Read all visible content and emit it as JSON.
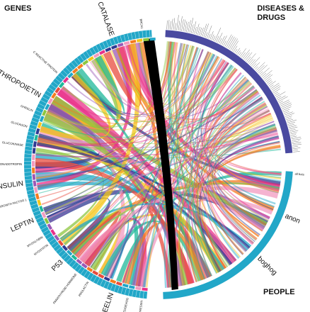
{
  "titles": {
    "genes": "GENES",
    "diseases_line1": "DISEASES &",
    "diseases_line2": "DRUGS",
    "people": "PEOPLE"
  },
  "gene_labels": [
    {
      "text": "CATALASE",
      "big": true
    },
    {
      "text": "BRCA1",
      "big": false
    },
    {
      "text": "C REACTIVE PROTEIN",
      "big": false
    },
    {
      "text": "ERYTHROPOIETIN",
      "big": true
    },
    {
      "text": "GHRELIN",
      "big": false
    },
    {
      "text": "GLUCAGON",
      "big": false
    },
    {
      "text": "GLUCOKINASE",
      "big": false
    },
    {
      "text": "HUMAN CHORIONIC GONADOTROPIN",
      "big": false
    },
    {
      "text": "INSULIN",
      "big": true
    },
    {
      "text": "INSULIN-LIKE GROWTH FACTOR 1",
      "big": false
    },
    {
      "text": "LEPTIN",
      "big": true
    },
    {
      "text": "MYOGLOBIN",
      "big": false
    },
    {
      "text": "MYOSTATIN",
      "big": false
    },
    {
      "text": "P53",
      "big": true
    },
    {
      "text": "PARATHYROID HORMONE",
      "big": false
    },
    {
      "text": "PROLACTIN",
      "big": false
    },
    {
      "text": "REELIN",
      "big": true
    },
    {
      "text": "SONIC HEDGEHOG",
      "big": false
    },
    {
      "text": "VASOPRESSIN",
      "big": false
    }
  ],
  "people_labels": [
    {
      "text": "all bots",
      "big": false
    },
    {
      "text": "anon",
      "big": true
    },
    {
      "text": "boghog",
      "big": true
    }
  ],
  "colors": {
    "ring_genes": "#22a7c8",
    "ring_people": "#22a7c8",
    "ring_diseases": "#4a4aa0",
    "black_band": "#000000",
    "palette": [
      "#e8318a",
      "#f5c518",
      "#22a7c8",
      "#2e3a91",
      "#8dc63f",
      "#f47c20",
      "#9b59b6",
      "#e84c3d",
      "#1fb89a",
      "#f29ac0"
    ]
  }
}
